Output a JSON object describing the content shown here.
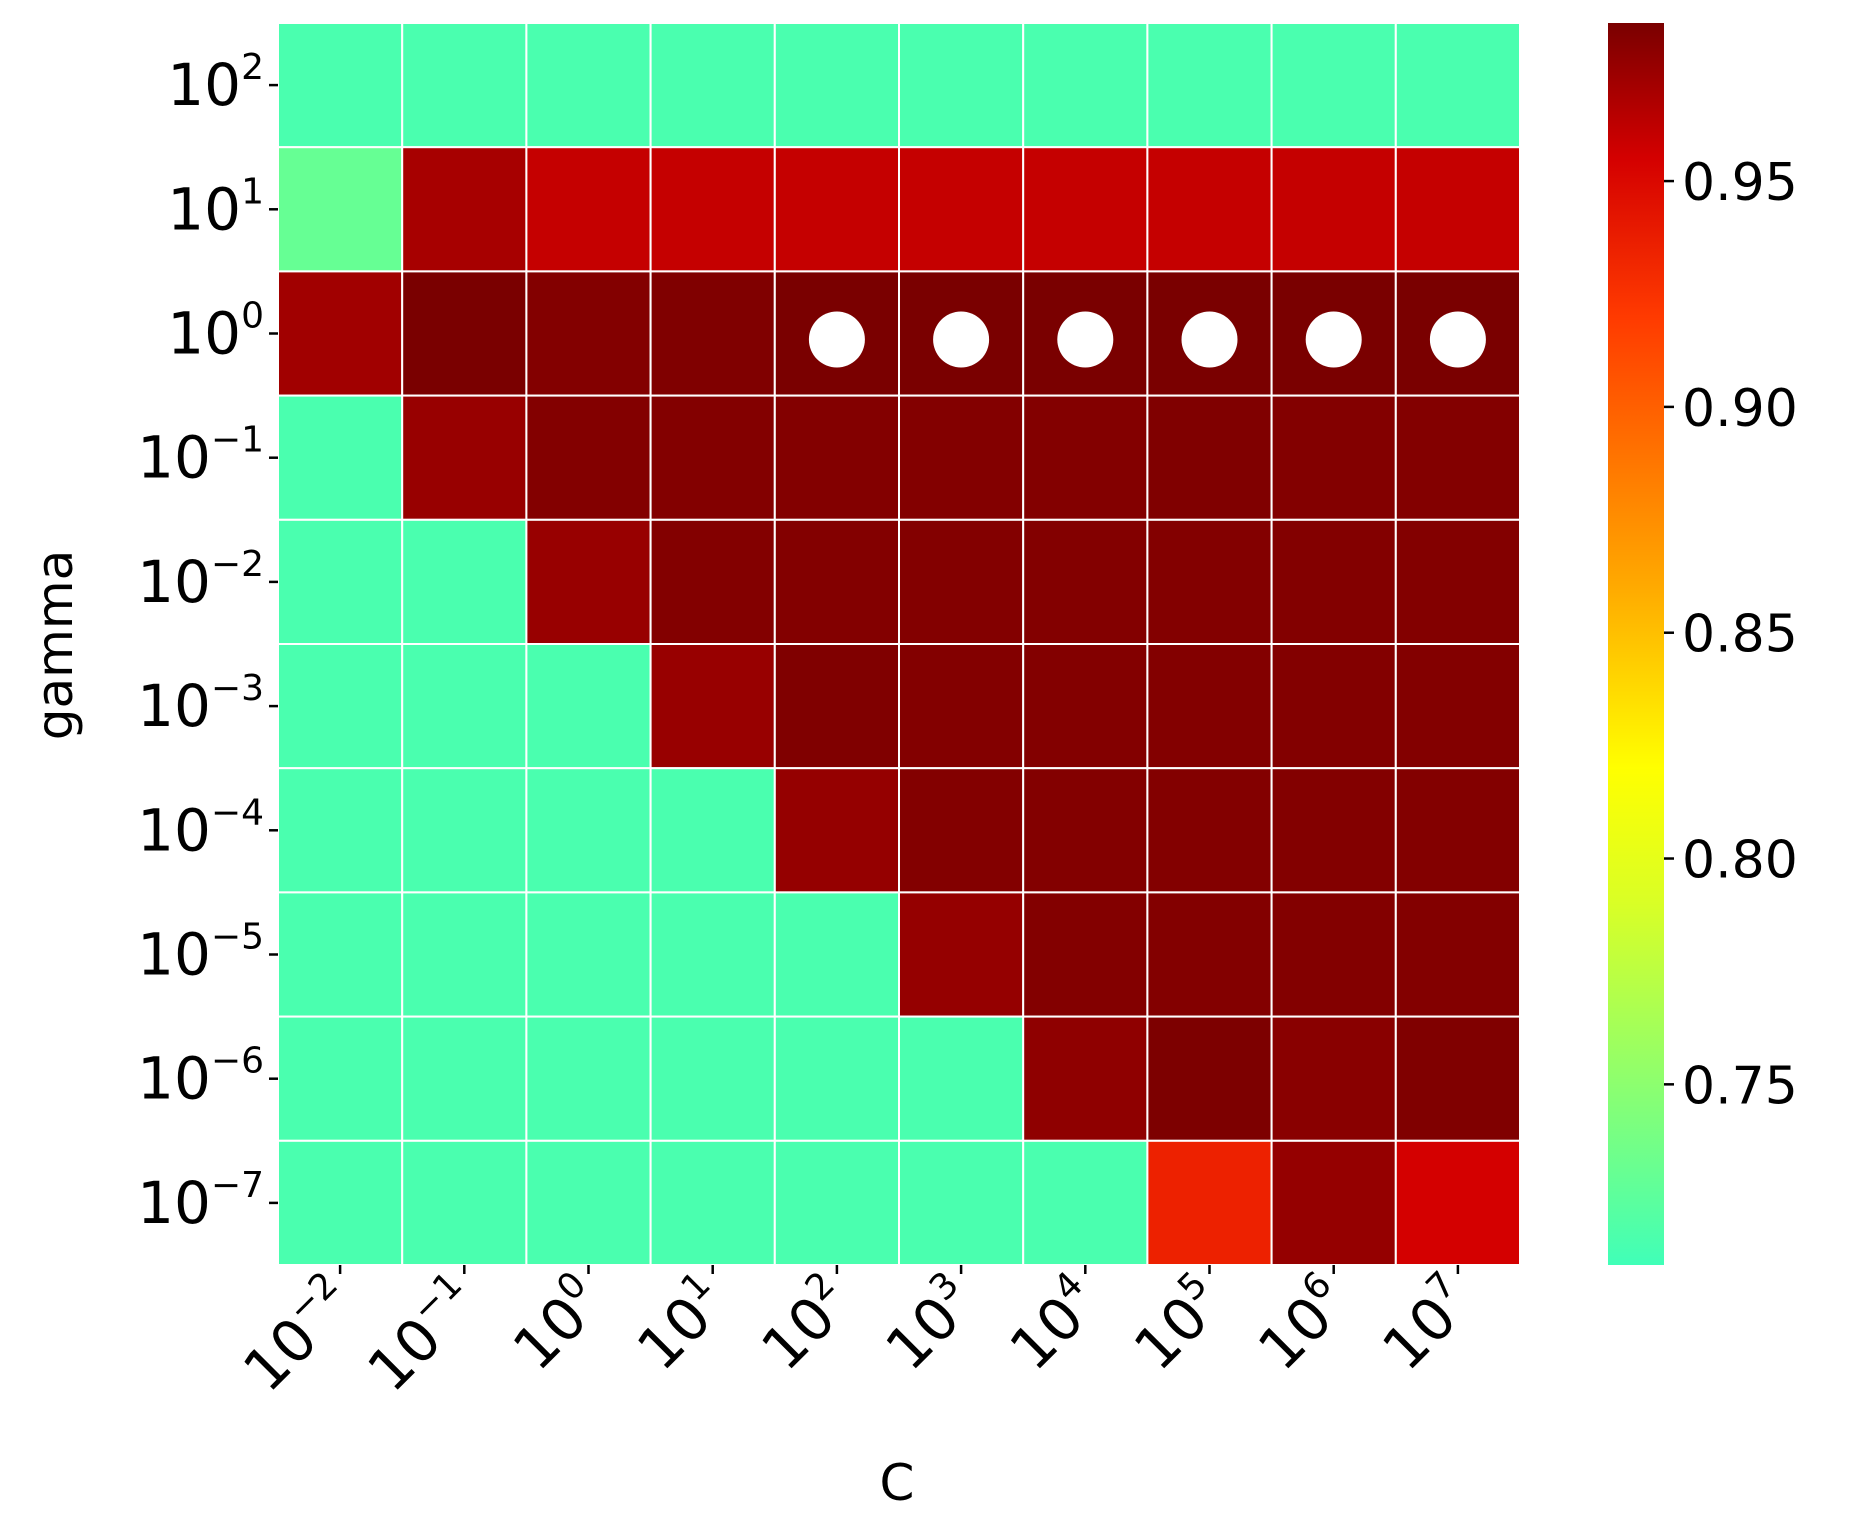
{
  "chart_data": {
    "type": "heatmap",
    "xlabel": "C",
    "ylabel": "gamma",
    "x_categories": [
      "10^-2",
      "10^-1",
      "10^0",
      "10^1",
      "10^2",
      "10^3",
      "10^4",
      "10^5",
      "10^6",
      "10^7"
    ],
    "y_categories": [
      "10^2",
      "10^1",
      "10^0",
      "10^-1",
      "10^-2",
      "10^-3",
      "10^-4",
      "10^-5",
      "10^-6",
      "10^-7"
    ],
    "x_tick_labels": [
      {
        "base": "10",
        "exp": "−2"
      },
      {
        "base": "10",
        "exp": "−1"
      },
      {
        "base": "10",
        "exp": "0"
      },
      {
        "base": "10",
        "exp": "1"
      },
      {
        "base": "10",
        "exp": "2"
      },
      {
        "base": "10",
        "exp": "3"
      },
      {
        "base": "10",
        "exp": "4"
      },
      {
        "base": "10",
        "exp": "5"
      },
      {
        "base": "10",
        "exp": "6"
      },
      {
        "base": "10",
        "exp": "7"
      }
    ],
    "y_tick_labels": [
      {
        "base": "10",
        "exp": "2"
      },
      {
        "base": "10",
        "exp": "1"
      },
      {
        "base": "10",
        "exp": "0"
      },
      {
        "base": "10",
        "exp": "−1"
      },
      {
        "base": "10",
        "exp": "−2"
      },
      {
        "base": "10",
        "exp": "−3"
      },
      {
        "base": "10",
        "exp": "−4"
      },
      {
        "base": "10",
        "exp": "−5"
      },
      {
        "base": "10",
        "exp": "−6"
      },
      {
        "base": "10",
        "exp": "−7"
      }
    ],
    "values": [
      [
        0.715,
        0.715,
        0.715,
        0.715,
        0.715,
        0.715,
        0.715,
        0.715,
        0.715,
        0.715
      ],
      [
        0.73,
        0.97,
        0.96,
        0.96,
        0.96,
        0.96,
        0.96,
        0.96,
        0.96,
        0.96
      ],
      [
        0.972,
        0.985,
        0.982,
        0.983,
        0.985,
        0.985,
        0.985,
        0.985,
        0.985,
        0.985
      ],
      [
        0.715,
        0.975,
        0.982,
        0.982,
        0.982,
        0.982,
        0.982,
        0.983,
        0.982,
        0.982
      ],
      [
        0.715,
        0.715,
        0.975,
        0.982,
        0.982,
        0.982,
        0.982,
        0.982,
        0.982,
        0.982
      ],
      [
        0.715,
        0.715,
        0.715,
        0.975,
        0.983,
        0.982,
        0.982,
        0.982,
        0.982,
        0.982
      ],
      [
        0.715,
        0.715,
        0.715,
        0.715,
        0.976,
        0.982,
        0.982,
        0.982,
        0.982,
        0.982
      ],
      [
        0.715,
        0.715,
        0.715,
        0.715,
        0.715,
        0.976,
        0.982,
        0.982,
        0.982,
        0.982
      ],
      [
        0.715,
        0.715,
        0.715,
        0.715,
        0.715,
        0.715,
        0.978,
        0.984,
        0.98,
        0.983
      ],
      [
        0.715,
        0.715,
        0.715,
        0.715,
        0.715,
        0.715,
        0.715,
        0.935,
        0.976,
        0.955
      ]
    ],
    "markers": {
      "shape": "white-circle",
      "cells": [
        {
          "row": "10^0",
          "col": "10^2"
        },
        {
          "row": "10^0",
          "col": "10^3"
        },
        {
          "row": "10^0",
          "col": "10^4"
        },
        {
          "row": "10^0",
          "col": "10^5"
        },
        {
          "row": "10^0",
          "col": "10^6"
        },
        {
          "row": "10^0",
          "col": "10^7"
        }
      ]
    },
    "colorbar": {
      "range": [
        0.71,
        0.985
      ],
      "ticks": [
        0.75,
        0.8,
        0.85,
        0.9,
        0.95
      ],
      "tick_labels": [
        "0.75",
        "0.80",
        "0.85",
        "0.90",
        "0.95"
      ],
      "colormap_stops": [
        {
          "value": 0.71,
          "color": "#40ffb8"
        },
        {
          "value": 0.79,
          "color": "#d9ff26"
        },
        {
          "value": 0.82,
          "color": "#ffff00"
        },
        {
          "value": 0.86,
          "color": "#ffaa00"
        },
        {
          "value": 0.92,
          "color": "#ff3a00"
        },
        {
          "value": 0.955,
          "color": "#d40000"
        },
        {
          "value": 0.985,
          "color": "#7a0000"
        }
      ]
    },
    "grid_line_color": "#ffffff",
    "marker_color": "#ffffff"
  }
}
